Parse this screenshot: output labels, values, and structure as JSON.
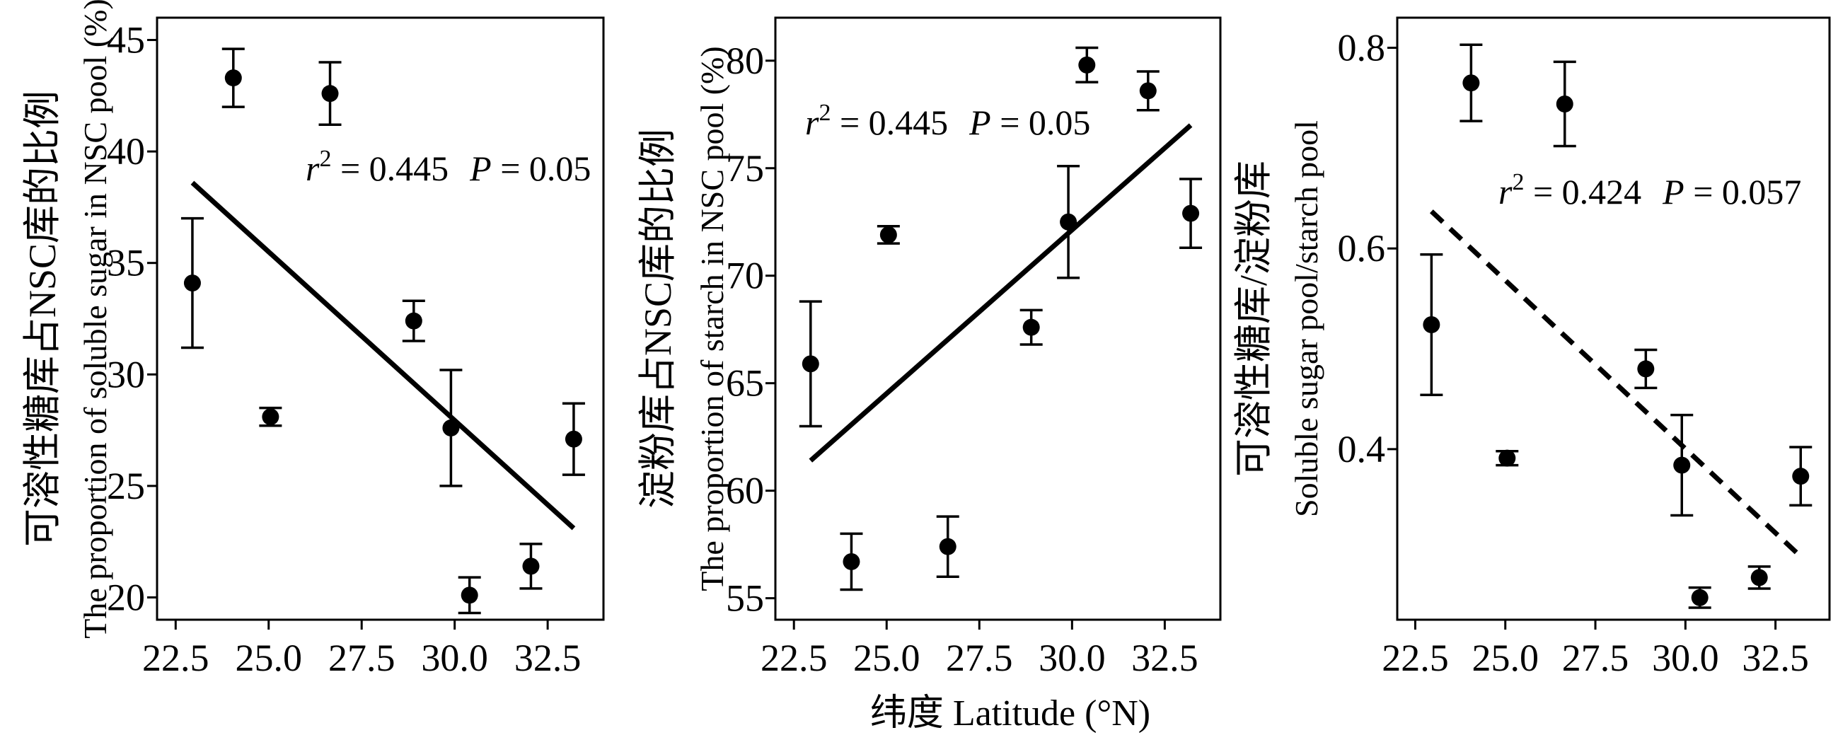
{
  "x_axis_label": "纬度  Latitude (°N)",
  "chart_data": [
    {
      "type": "scatter",
      "ylabel_cn": "可溶性糖库占NSC库的比例",
      "ylabel_en": "The proportion of soluble sugar in NSC pool (%)",
      "xlim": [
        22.0,
        34.0
      ],
      "ylim": [
        19.0,
        46.0
      ],
      "x_ticks": [
        22.5,
        25.0,
        27.5,
        30.0,
        32.5
      ],
      "x_tick_labels": [
        "22.5",
        "25.0",
        "27.5",
        "30.0",
        "32.5"
      ],
      "y_ticks": [
        20,
        25,
        30,
        35,
        40,
        45
      ],
      "y_tick_labels": [
        "20",
        "25",
        "30",
        "35",
        "40",
        "45"
      ],
      "points": [
        {
          "x": 22.95,
          "y": 34.1,
          "err": 2.9
        },
        {
          "x": 24.05,
          "y": 43.3,
          "err": 1.3
        },
        {
          "x": 25.05,
          "y": 28.1,
          "err": 0.4
        },
        {
          "x": 26.65,
          "y": 42.6,
          "err": 1.4
        },
        {
          "x": 28.9,
          "y": 32.4,
          "err": 0.9
        },
        {
          "x": 29.9,
          "y": 27.6,
          "err": 2.6
        },
        {
          "x": 30.4,
          "y": 20.1,
          "err": 0.8
        },
        {
          "x": 32.05,
          "y": 21.4,
          "err": 1.0
        },
        {
          "x": 33.2,
          "y": 27.1,
          "err": 1.6
        }
      ],
      "fit": {
        "x": [
          22.95,
          33.2
        ],
        "y": [
          38.6,
          23.1
        ],
        "style": "solid"
      },
      "stat": {
        "r2_label": "r",
        "r2_exp": "2",
        "r2_value": " = 0.445",
        "p_label": "P",
        "p_value": " = 0.05"
      }
    },
    {
      "type": "scatter",
      "ylabel_cn": "淀粉库占NSC库的比例",
      "ylabel_en": "The proportion of starch in NSC pool (%)",
      "xlim": [
        22.0,
        34.0
      ],
      "ylim": [
        54.0,
        82.0
      ],
      "x_ticks": [
        22.5,
        25.0,
        27.5,
        30.0,
        32.5
      ],
      "x_tick_labels": [
        "22.5",
        "25.0",
        "27.5",
        "30.0",
        "32.5"
      ],
      "y_ticks": [
        55,
        60,
        65,
        70,
        75,
        80
      ],
      "y_tick_labels": [
        "55",
        "60",
        "65",
        "70",
        "75",
        "80"
      ],
      "points": [
        {
          "x": 22.95,
          "y": 65.9,
          "err": 2.9
        },
        {
          "x": 24.05,
          "y": 56.7,
          "err": 1.3
        },
        {
          "x": 25.05,
          "y": 71.9,
          "err": 0.4
        },
        {
          "x": 26.65,
          "y": 57.4,
          "err": 1.4
        },
        {
          "x": 28.9,
          "y": 67.6,
          "err": 0.8
        },
        {
          "x": 29.9,
          "y": 72.5,
          "err": 2.6
        },
        {
          "x": 30.4,
          "y": 79.8,
          "err": 0.8
        },
        {
          "x": 32.05,
          "y": 78.6,
          "err": 0.9
        },
        {
          "x": 33.2,
          "y": 72.9,
          "err": 1.6
        }
      ],
      "fit": {
        "x": [
          22.95,
          33.2
        ],
        "y": [
          61.4,
          77.0
        ],
        "style": "solid"
      },
      "stat": {
        "r2_label": "r",
        "r2_exp": "2",
        "r2_value": " = 0.445",
        "p_label": "P",
        "p_value": " = 0.05"
      }
    },
    {
      "type": "scatter",
      "ylabel_cn": "可溶性糖库/淀粉库",
      "ylabel_en": "Soluble sugar pool/starch pool",
      "xlim": [
        22.0,
        34.0
      ],
      "ylim": [
        0.23,
        0.83
      ],
      "x_ticks": [
        22.5,
        25.0,
        27.5,
        30.0,
        32.5
      ],
      "x_tick_labels": [
        "22.5",
        "25.0",
        "27.5",
        "30.0",
        "32.5"
      ],
      "y_ticks": [
        0.4,
        0.6,
        0.8
      ],
      "y_tick_labels": [
        "0.4",
        "0.6",
        "0.8"
      ],
      "points": [
        {
          "x": 22.95,
          "y": 0.524,
          "err": 0.07
        },
        {
          "x": 24.05,
          "y": 0.765,
          "err": 0.038
        },
        {
          "x": 25.05,
          "y": 0.391,
          "err": 0.007
        },
        {
          "x": 26.65,
          "y": 0.744,
          "err": 0.042
        },
        {
          "x": 28.9,
          "y": 0.48,
          "err": 0.019
        },
        {
          "x": 29.9,
          "y": 0.384,
          "err": 0.05
        },
        {
          "x": 30.4,
          "y": 0.252,
          "err": 0.01
        },
        {
          "x": 32.05,
          "y": 0.272,
          "err": 0.011
        },
        {
          "x": 33.2,
          "y": 0.373,
          "err": 0.029
        }
      ],
      "fit": {
        "x": [
          22.95,
          33.2
        ],
        "y": [
          0.637,
          0.293
        ],
        "style": "dashed"
      },
      "stat": {
        "r2_label": "r",
        "r2_exp": "2",
        "r2_value": " = 0.424",
        "p_label": "P",
        "p_value": " = 0.057"
      }
    }
  ]
}
